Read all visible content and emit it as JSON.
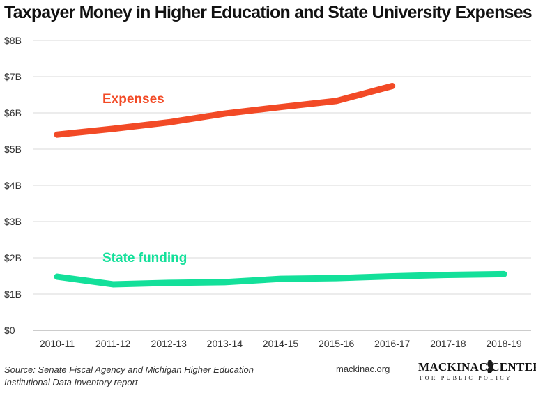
{
  "title": "Taxpayer Money in Higher Education and State University Expenses",
  "chart_data": {
    "type": "line",
    "categories": [
      "2010-11",
      "2011-12",
      "2012-13",
      "2013-14",
      "2014-15",
      "2015-16",
      "2016-17",
      "2017-18",
      "2018-19"
    ],
    "series": [
      {
        "name": "Expenses",
        "color": "#f24a26",
        "values": [
          5.4,
          5.56,
          5.74,
          5.98,
          6.16,
          6.33,
          6.74,
          null,
          null
        ]
      },
      {
        "name": "State funding",
        "color": "#13e09a",
        "values": [
          1.48,
          1.27,
          1.31,
          1.33,
          1.42,
          1.44,
          1.49,
          1.53,
          1.55
        ]
      }
    ],
    "yticks": [
      "$0",
      "$1B",
      "$2B",
      "$3B",
      "$4B",
      "$5B",
      "$6B",
      "$7B",
      "$8B"
    ],
    "ylim": [
      0,
      8
    ],
    "grid": true,
    "xlabel": "",
    "ylabel": ""
  },
  "footer": {
    "source_line1": "Source: Senate Fiscal Agency and Michigan Higher Education",
    "source_line2": "Institutional Data Inventory report",
    "website": "mackinac.org",
    "logo_text": "MACKINAC CENTER",
    "logo_subtext": "FOR PUBLIC POLICY"
  }
}
